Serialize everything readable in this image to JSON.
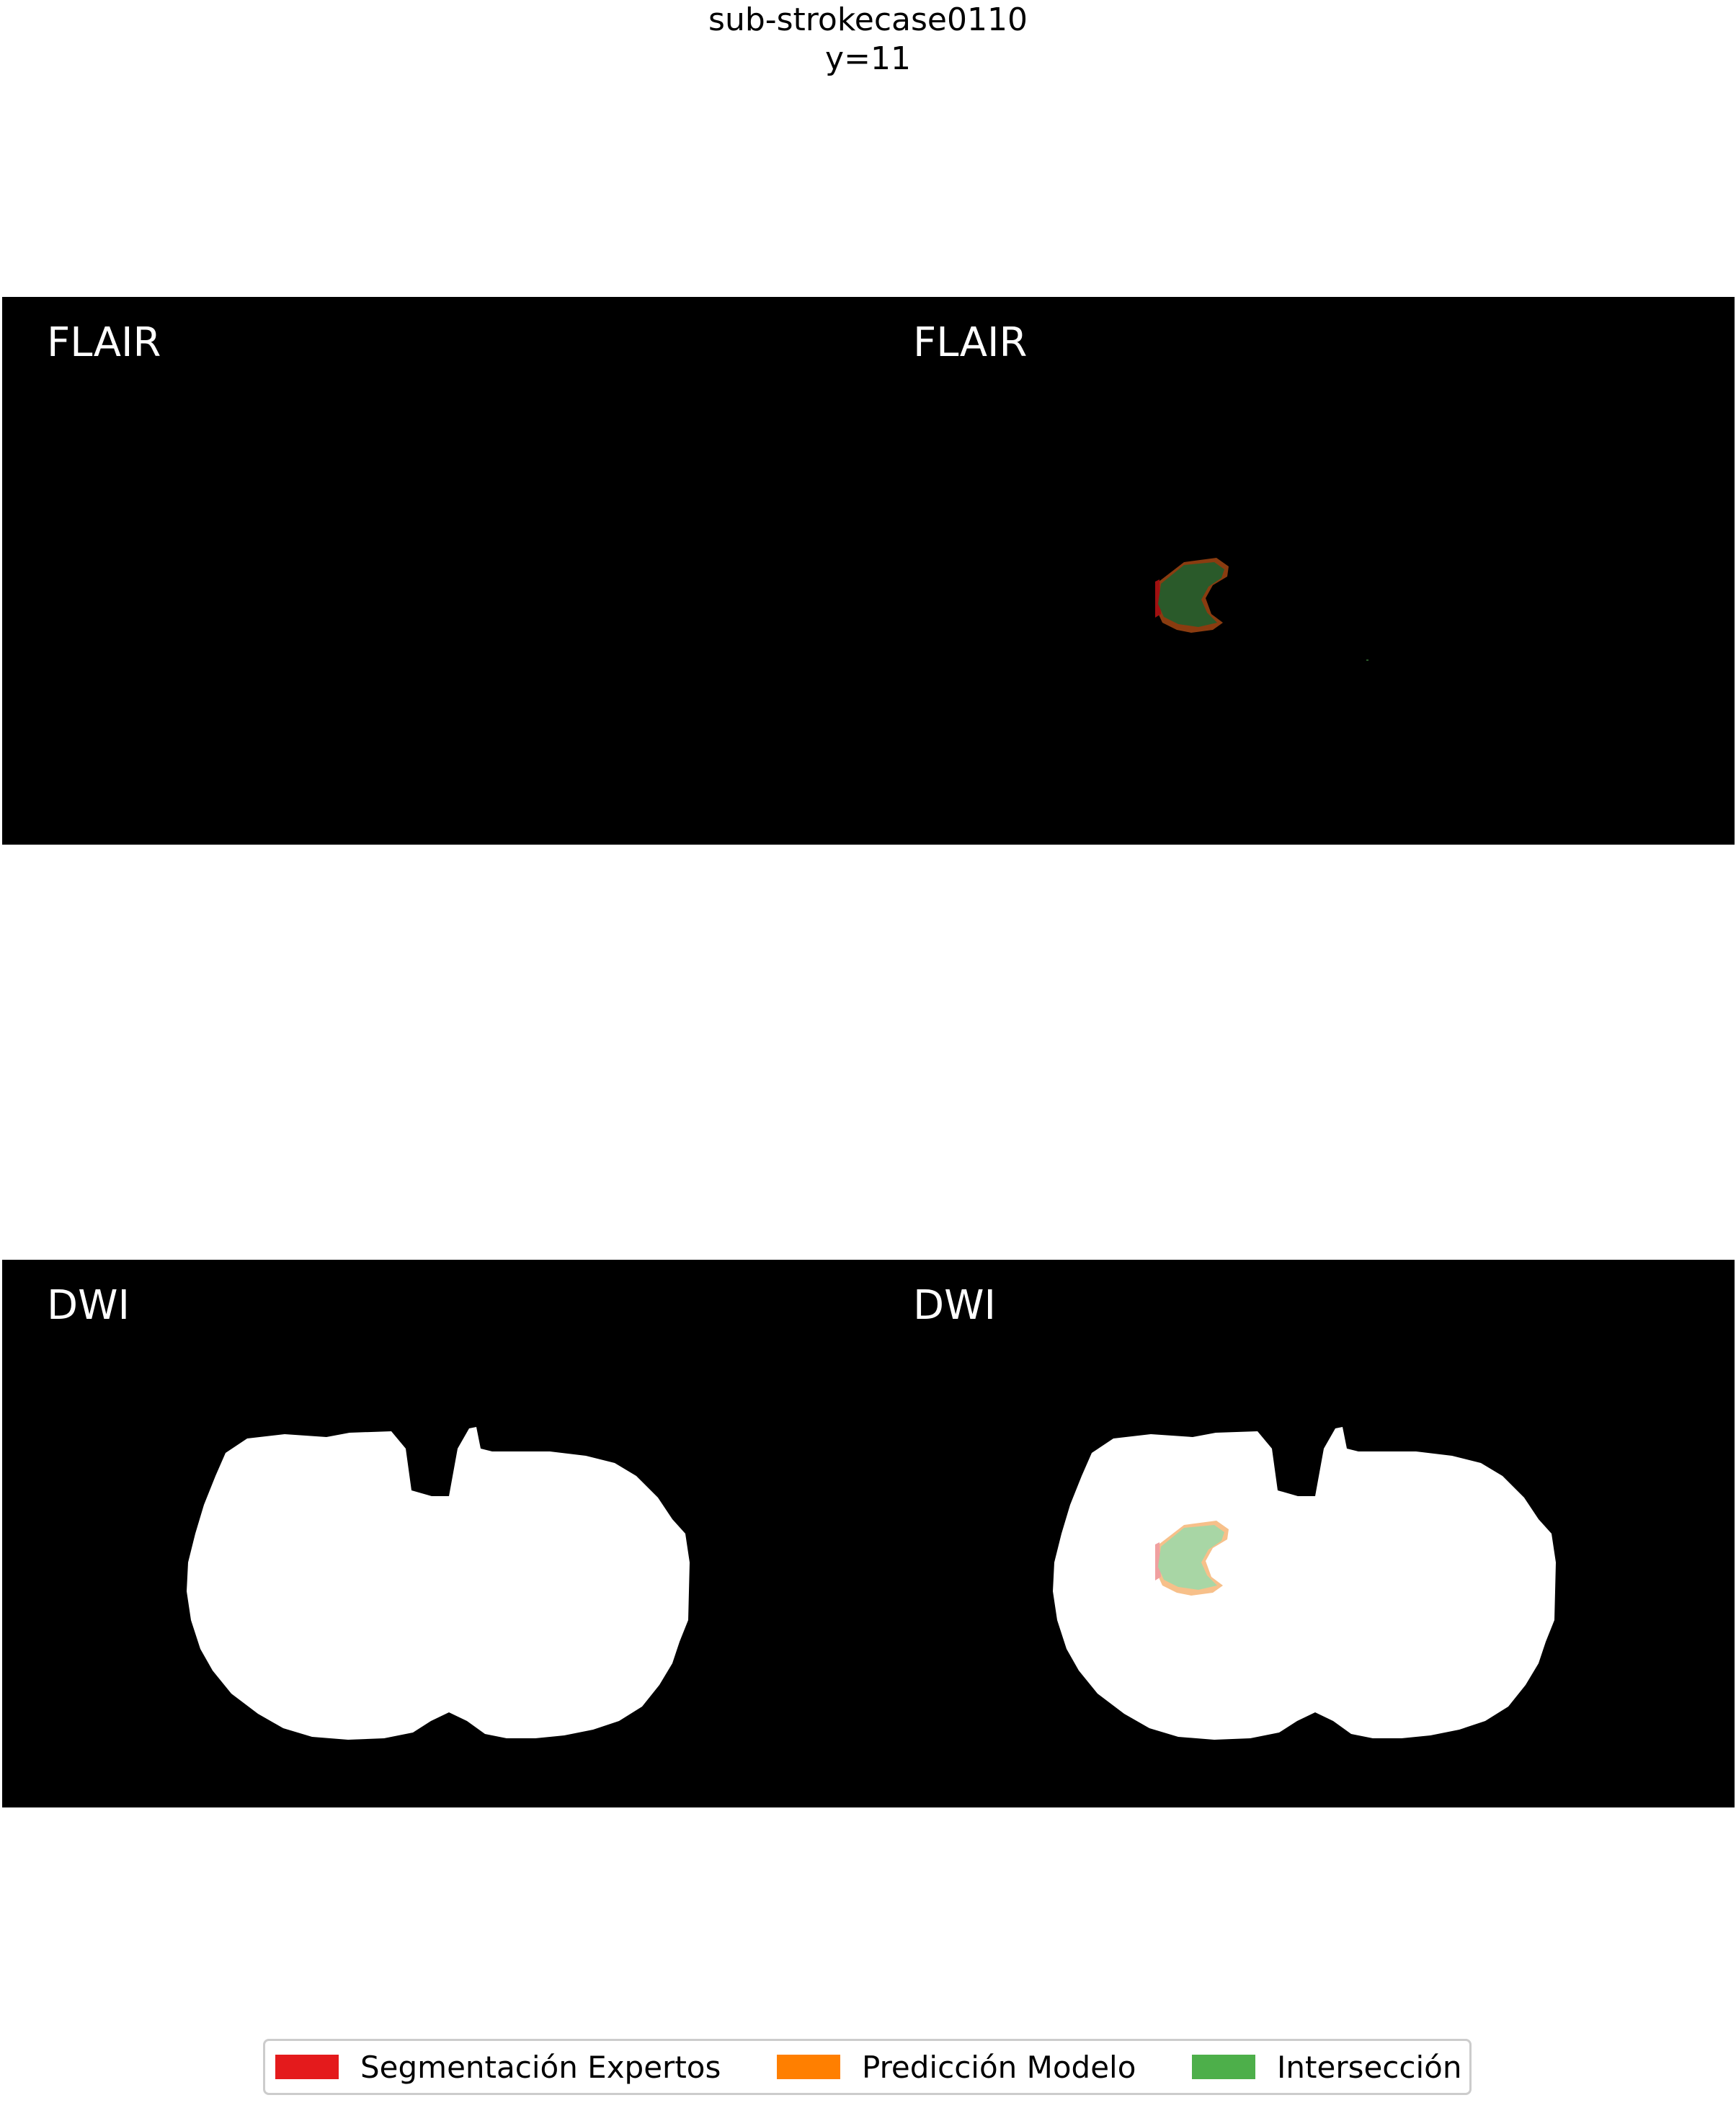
{
  "figure": {
    "subject": "sub-strokecase0110",
    "slice": "y=11"
  },
  "panels": [
    {
      "label_left": "FLAIR",
      "label_right": "FLAIR"
    },
    {
      "label_left": "DWI",
      "label_right": "DWI"
    }
  ],
  "legend": [
    {
      "label": "Segmentación Expertos",
      "color": "#e41a1c"
    },
    {
      "label": "Predicción Modelo",
      "color": "#ff7f00"
    },
    {
      "label": "Intersección",
      "color": "#4daf4a"
    }
  ]
}
